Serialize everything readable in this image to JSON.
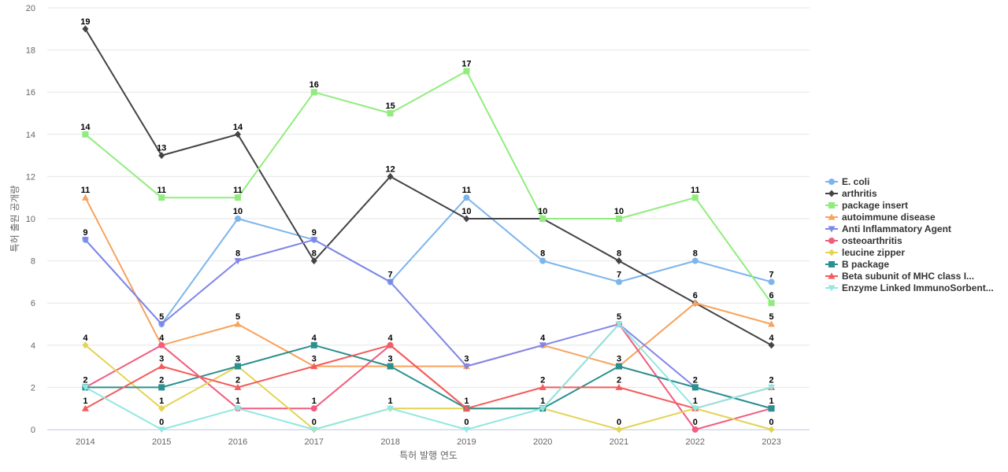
{
  "chart_data": {
    "type": "line",
    "title": "",
    "xlabel": "특허 발행 연도",
    "ylabel": "특허 출원 공개량",
    "ylim": [
      0,
      20
    ],
    "yticks": [
      0,
      2,
      4,
      6,
      8,
      10,
      12,
      14,
      16,
      18,
      20
    ],
    "categories": [
      "2014",
      "2015",
      "2016",
      "2017",
      "2018",
      "2019",
      "2020",
      "2021",
      "2022",
      "2023"
    ],
    "grid": true,
    "legend_position": "right",
    "series": [
      {
        "name": "E. coli",
        "color": "#7cb5ec",
        "marker": "circle",
        "values": [
          9,
          5,
          10,
          9,
          7,
          11,
          8,
          7,
          8,
          7
        ]
      },
      {
        "name": "arthritis",
        "color": "#434348",
        "marker": "diamond",
        "values": [
          19,
          13,
          14,
          8,
          12,
          10,
          10,
          8,
          6,
          4
        ]
      },
      {
        "name": "package insert",
        "color": "#90ed7d",
        "marker": "square",
        "values": [
          14,
          11,
          11,
          16,
          15,
          17,
          10,
          10,
          11,
          6
        ]
      },
      {
        "name": "autoimmune disease",
        "color": "#f7a35c",
        "marker": "triangle",
        "values": [
          11,
          4,
          5,
          3,
          3,
          3,
          4,
          3,
          6,
          5
        ]
      },
      {
        "name": "Anti Inflammatory Agent",
        "color": "#8085e9",
        "marker": "triangle-down",
        "values": [
          9,
          5,
          8,
          9,
          7,
          3,
          4,
          5,
          2,
          1
        ]
      },
      {
        "name": "osteoarthritis",
        "color": "#f15c80",
        "marker": "circle",
        "values": [
          2,
          4,
          1,
          1,
          4,
          1,
          1,
          5,
          0,
          1
        ]
      },
      {
        "name": "leucine zipper",
        "color": "#e4d354",
        "marker": "diamond",
        "values": [
          4,
          1,
          3,
          0,
          1,
          1,
          1,
          0,
          1,
          0
        ]
      },
      {
        "name": "B package",
        "color": "#2b908f",
        "marker": "square",
        "values": [
          2,
          2,
          3,
          4,
          3,
          1,
          1,
          3,
          2,
          1
        ]
      },
      {
        "name": "Beta subunit of MHC class I...",
        "color": "#f45b5b",
        "marker": "triangle",
        "values": [
          1,
          3,
          2,
          3,
          4,
          1,
          2,
          2,
          1,
          2
        ]
      },
      {
        "name": "Enzyme Linked ImmunoSorbent...",
        "color": "#91e8e1",
        "marker": "triangle-down",
        "values": [
          2,
          0,
          1,
          0,
          1,
          0,
          1,
          5,
          1,
          2
        ]
      }
    ],
    "data_labels": [
      {
        "x": "2014",
        "y": 19,
        "text": "19"
      },
      {
        "x": "2014",
        "y": 14,
        "text": "14"
      },
      {
        "x": "2014",
        "y": 11,
        "text": "11"
      },
      {
        "x": "2014",
        "y": 9,
        "text": "9"
      },
      {
        "x": "2014",
        "y": 4,
        "text": "4"
      },
      {
        "x": "2014",
        "y": 2,
        "text": "2"
      },
      {
        "x": "2014",
        "y": 1,
        "text": "1"
      },
      {
        "x": "2015",
        "y": 13,
        "text": "13"
      },
      {
        "x": "2015",
        "y": 11,
        "text": "11"
      },
      {
        "x": "2015",
        "y": 5,
        "text": "5"
      },
      {
        "x": "2015",
        "y": 4,
        "text": "4"
      },
      {
        "x": "2015",
        "y": 3,
        "text": "3"
      },
      {
        "x": "2015",
        "y": 2,
        "text": "2"
      },
      {
        "x": "2015",
        "y": 1,
        "text": "1"
      },
      {
        "x": "2015",
        "y": 0,
        "text": "0"
      },
      {
        "x": "2016",
        "y": 14,
        "text": "14"
      },
      {
        "x": "2016",
        "y": 11,
        "text": "11"
      },
      {
        "x": "2016",
        "y": 10,
        "text": "10"
      },
      {
        "x": "2016",
        "y": 8,
        "text": "8"
      },
      {
        "x": "2016",
        "y": 5,
        "text": "5"
      },
      {
        "x": "2016",
        "y": 3,
        "text": "3"
      },
      {
        "x": "2016",
        "y": 2,
        "text": "2"
      },
      {
        "x": "2016",
        "y": 1,
        "text": "1"
      },
      {
        "x": "2017",
        "y": 16,
        "text": "16"
      },
      {
        "x": "2017",
        "y": 9,
        "text": "9"
      },
      {
        "x": "2017",
        "y": 8,
        "text": "8"
      },
      {
        "x": "2017",
        "y": 4,
        "text": "4"
      },
      {
        "x": "2017",
        "y": 3,
        "text": "3"
      },
      {
        "x": "2017",
        "y": 1,
        "text": "1"
      },
      {
        "x": "2017",
        "y": 0,
        "text": "0"
      },
      {
        "x": "2018",
        "y": 15,
        "text": "15"
      },
      {
        "x": "2018",
        "y": 12,
        "text": "12"
      },
      {
        "x": "2018",
        "y": 7,
        "text": "7"
      },
      {
        "x": "2018",
        "y": 4,
        "text": "4"
      },
      {
        "x": "2018",
        "y": 3,
        "text": "3"
      },
      {
        "x": "2018",
        "y": 1,
        "text": "1"
      },
      {
        "x": "2019",
        "y": 17,
        "text": "17"
      },
      {
        "x": "2019",
        "y": 11,
        "text": "11"
      },
      {
        "x": "2019",
        "y": 10,
        "text": "10"
      },
      {
        "x": "2019",
        "y": 3,
        "text": "3"
      },
      {
        "x": "2019",
        "y": 1,
        "text": "1"
      },
      {
        "x": "2019",
        "y": 0,
        "text": "0"
      },
      {
        "x": "2020",
        "y": 10,
        "text": "10"
      },
      {
        "x": "2020",
        "y": 8,
        "text": "8"
      },
      {
        "x": "2020",
        "y": 4,
        "text": "4"
      },
      {
        "x": "2020",
        "y": 2,
        "text": "2"
      },
      {
        "x": "2020",
        "y": 1,
        "text": "1"
      },
      {
        "x": "2021",
        "y": 10,
        "text": "10"
      },
      {
        "x": "2021",
        "y": 8,
        "text": "8"
      },
      {
        "x": "2021",
        "y": 7,
        "text": "7"
      },
      {
        "x": "2021",
        "y": 5,
        "text": "5"
      },
      {
        "x": "2021",
        "y": 3,
        "text": "3"
      },
      {
        "x": "2021",
        "y": 2,
        "text": "2"
      },
      {
        "x": "2021",
        "y": 0,
        "text": "0"
      },
      {
        "x": "2022",
        "y": 11,
        "text": "11"
      },
      {
        "x": "2022",
        "y": 8,
        "text": "8"
      },
      {
        "x": "2022",
        "y": 6,
        "text": "6"
      },
      {
        "x": "2022",
        "y": 2,
        "text": "2"
      },
      {
        "x": "2022",
        "y": 1,
        "text": "1"
      },
      {
        "x": "2022",
        "y": 0,
        "text": "0"
      },
      {
        "x": "2023",
        "y": 7,
        "text": "7"
      },
      {
        "x": "2023",
        "y": 6,
        "text": "6"
      },
      {
        "x": "2023",
        "y": 5,
        "text": "5"
      },
      {
        "x": "2023",
        "y": 4,
        "text": "4"
      },
      {
        "x": "2023",
        "y": 2,
        "text": "2"
      },
      {
        "x": "2023",
        "y": 1,
        "text": "1"
      },
      {
        "x": "2023",
        "y": 0,
        "text": "0"
      }
    ]
  }
}
